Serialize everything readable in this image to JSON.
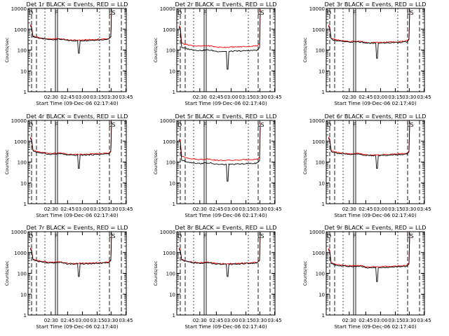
{
  "figure": {
    "x_label": "Start Time (09-Dec-06 02:17:40)",
    "y_label": "Counts/sec",
    "y_ticks": [
      "1",
      "10",
      "100",
      "1000",
      "10000"
    ],
    "x_ticks": [
      "02:30",
      "02:45",
      "03:00",
      "03:15",
      "03:30",
      "03:45"
    ],
    "marker_left": "D",
    "marker_mid": "F",
    "marker_right": "LS",
    "colors": {
      "events": "#000000",
      "lld": "#ff0000"
    }
  },
  "chart_data": [
    {
      "type": "line",
      "title": "Det 1r BLACK = Events, RED = LLD",
      "ylim": [
        1,
        10000
      ],
      "y_scale": "log",
      "series": [
        {
          "name": "Events",
          "color": "#000000",
          "level": 330,
          "start_spike": 1500,
          "dip": 70
        },
        {
          "name": "LLD",
          "color": "#ff0000",
          "level": 350,
          "start_spike": 1700
        }
      ]
    },
    {
      "type": "line",
      "title": "Det 2r BLACK = Events, RED = LLD",
      "ylim": [
        1,
        10000
      ],
      "y_scale": "log",
      "series": [
        {
          "name": "Events",
          "color": "#000000",
          "level": 100,
          "start_spike": 1300,
          "dip": 12
        },
        {
          "name": "LLD",
          "color": "#ff0000",
          "level": 160,
          "start_spike": 1500
        }
      ]
    },
    {
      "type": "line",
      "title": "Det 3r BLACK = Events, RED = LLD",
      "ylim": [
        1,
        10000
      ],
      "y_scale": "log",
      "series": [
        {
          "name": "Events",
          "color": "#000000",
          "level": 250,
          "start_spike": 1400,
          "dip": 40
        },
        {
          "name": "LLD",
          "color": "#ff0000",
          "level": 270,
          "start_spike": 1600
        }
      ]
    },
    {
      "type": "line",
      "title": "Det 4r BLACK = Events, RED = LLD",
      "ylim": [
        1,
        10000
      ],
      "y_scale": "log",
      "series": [
        {
          "name": "Events",
          "color": "#000000",
          "level": 250,
          "start_spike": 1400,
          "dip": 50
        },
        {
          "name": "LLD",
          "color": "#ff0000",
          "level": 270,
          "start_spike": 1600
        }
      ]
    },
    {
      "type": "line",
      "title": "Det 5r BLACK = Events, RED = LLD",
      "ylim": [
        1,
        10000
      ],
      "y_scale": "log",
      "series": [
        {
          "name": "Events",
          "color": "#000000",
          "level": 90,
          "start_spike": 1100,
          "dip": 12
        },
        {
          "name": "LLD",
          "color": "#ff0000",
          "level": 140,
          "start_spike": 1300
        }
      ]
    },
    {
      "type": "line",
      "title": "Det 6r BLACK = Events, RED = LLD",
      "ylim": [
        1,
        10000
      ],
      "y_scale": "log",
      "series": [
        {
          "name": "Events",
          "color": "#000000",
          "level": 240,
          "start_spike": 1400,
          "dip": 50
        },
        {
          "name": "LLD",
          "color": "#ff0000",
          "level": 260,
          "start_spike": 1600
        }
      ]
    },
    {
      "type": "line",
      "title": "Det 7r BLACK = Events, RED = LLD",
      "ylim": [
        1,
        10000
      ],
      "y_scale": "log",
      "series": [
        {
          "name": "Events",
          "color": "#000000",
          "level": 330,
          "start_spike": 1500,
          "dip": 70
        },
        {
          "name": "LLD",
          "color": "#ff0000",
          "level": 350,
          "start_spike": 1700
        }
      ]
    },
    {
      "type": "line",
      "title": "Det 8r BLACK = Events, RED = LLD",
      "ylim": [
        1,
        10000
      ],
      "y_scale": "log",
      "series": [
        {
          "name": "Events",
          "color": "#000000",
          "level": 320,
          "start_spike": 1500,
          "dip": 70
        },
        {
          "name": "LLD",
          "color": "#ff0000",
          "level": 340,
          "start_spike": 1700
        }
      ]
    },
    {
      "type": "line",
      "title": "Det 9r BLACK = Events, RED = LLD",
      "ylim": [
        1,
        10000
      ],
      "y_scale": "log",
      "series": [
        {
          "name": "Events",
          "color": "#000000",
          "level": 220,
          "start_spike": 1400,
          "dip": 40
        },
        {
          "name": "LLD",
          "color": "#ff0000",
          "level": 240,
          "start_spike": 1600
        }
      ]
    }
  ]
}
